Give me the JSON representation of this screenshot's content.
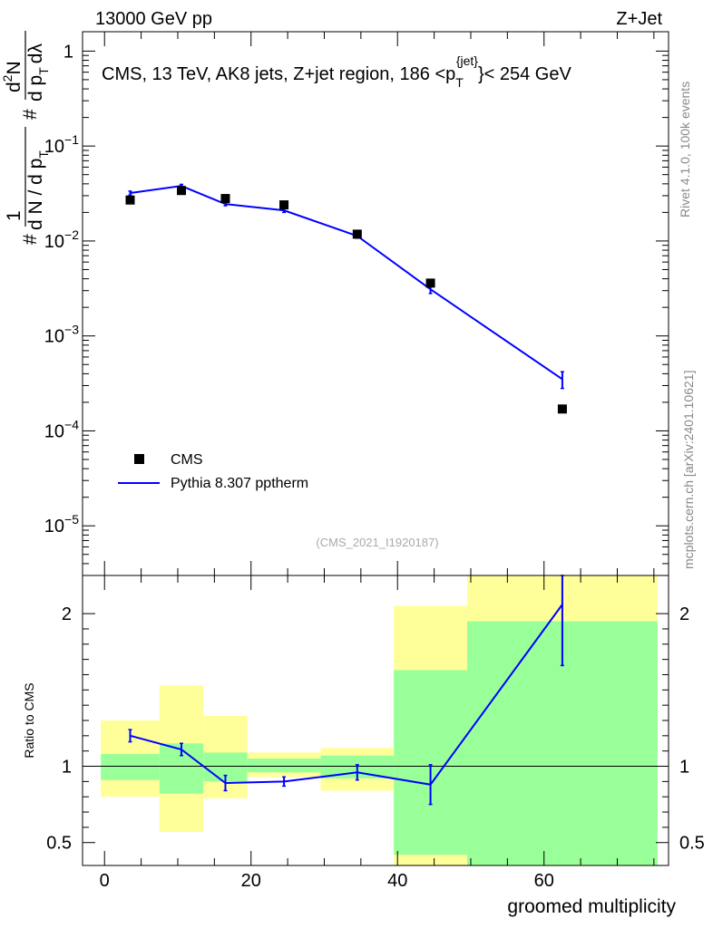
{
  "chart_data": [
    {
      "type": "scatter",
      "panel": "main",
      "title": "CMS, 13 TeV, AK8 jets, Z+jet region, 186 <p_T^{jet}< 254 GeV",
      "title_parts": {
        "prefix": "CMS, 13 TeV, AK8 jets, Z+jet region, 186 <p",
        "sub": "T",
        "sup": "{jet}",
        "suffix": "}< 254 GeV"
      },
      "top_left": "13000 GeV pp",
      "top_right": "Z+Jet",
      "ylabel": "(1/#dN/dp_T) #d²N/dp_T dλ",
      "ylabel_parts": {
        "one": "1",
        "hash": "#",
        "denom": "d N / d p",
        "sub": "T",
        "num": "d",
        "sq": "2",
        "n": "N",
        "den2": "d p",
        "sub2": "T",
        "dl": "dλ"
      },
      "yscale": "log",
      "ylim": [
        3e-06,
        1.6
      ],
      "xlim": [
        -3,
        77
      ],
      "y_ticks": [
        {
          "value": 1,
          "label": "1"
        },
        {
          "value": 0.1,
          "label": "10",
          "exp": "−1"
        },
        {
          "value": 0.01,
          "label": "10",
          "exp": "−2"
        },
        {
          "value": 0.001,
          "label": "10",
          "exp": "−3"
        },
        {
          "value": 0.0001,
          "label": "10",
          "exp": "−4"
        },
        {
          "value": 1e-05,
          "label": "10",
          "exp": "−5"
        }
      ],
      "series": [
        {
          "name": "CMS",
          "style": "marker",
          "color": "#000000",
          "x": [
            3.5,
            10.5,
            16.5,
            24.5,
            34.5,
            44.5,
            62.5
          ],
          "y": [
            0.027,
            0.034,
            0.028,
            0.024,
            0.0118,
            0.0036,
            0.00017
          ]
        },
        {
          "name": "Pythia 8.307 pptherm",
          "style": "line",
          "color": "#0000ff",
          "x": [
            3.5,
            10.5,
            16.5,
            24.5,
            34.5,
            44.5,
            62.5
          ],
          "y": [
            0.032,
            0.038,
            0.0245,
            0.021,
            0.0113,
            0.0031,
            0.00035
          ],
          "yerr": [
            0.0015,
            0.0015,
            0.001,
            0.001,
            0.0006,
            0.0003,
            7e-05
          ]
        }
      ],
      "legend": [
        "CMS",
        "Pythia 8.307 pptherm"
      ],
      "legend_position": "lower-left",
      "watermark": "(CMS_2021_I1920187)",
      "side_text_1": "Rivet 4.1.0,  100k events",
      "side_text_2": "mcplots.cern.ch [arXiv:2401.10621]"
    },
    {
      "type": "line",
      "panel": "ratio",
      "ylabel": "Ratio to CMS",
      "xlabel": "groomed multiplicity",
      "ylim": [
        0.35,
        2.25
      ],
      "xlim": [
        -3,
        77
      ],
      "x_ticks": [
        0,
        20,
        40,
        60
      ],
      "y_ticks": [
        {
          "value": 0.5,
          "label": "0.5"
        },
        {
          "value": 1,
          "label": "1"
        },
        {
          "value": 2,
          "label": "2"
        }
      ],
      "bands": [
        {
          "x0": -0.5,
          "x1": 7.5,
          "y_lo": 0.8,
          "y_hi": 1.3,
          "g_lo": 0.91,
          "g_hi": 1.08
        },
        {
          "x0": 7.5,
          "x1": 13.5,
          "y_lo": 0.57,
          "y_hi": 1.53,
          "g_lo": 0.82,
          "g_hi": 1.15
        },
        {
          "x0": 13.5,
          "x1": 19.5,
          "y_lo": 0.79,
          "y_hi": 1.33,
          "g_lo": 0.9,
          "g_hi": 1.09
        },
        {
          "x0": 19.5,
          "x1": 29.5,
          "y_lo": 0.93,
          "y_hi": 1.09,
          "g_lo": 0.96,
          "g_hi": 1.05
        },
        {
          "x0": 29.5,
          "x1": 39.5,
          "y_lo": 0.84,
          "y_hi": 1.12,
          "g_lo": 0.92,
          "g_hi": 1.07
        },
        {
          "x0": 39.5,
          "x1": 49.5,
          "y_lo": 0.35,
          "y_hi": 2.05,
          "g_lo": 0.42,
          "g_hi": 1.63
        },
        {
          "x0": 49.5,
          "x1": 75.5,
          "y_lo": 0.35,
          "y_hi": 2.25,
          "g_lo": 0.35,
          "g_hi": 1.95
        }
      ],
      "series": [
        {
          "name": "Pythia 8.307 pptherm",
          "color": "#0000ff",
          "x": [
            3.5,
            10.5,
            16.5,
            24.5,
            34.5,
            44.5,
            62.5
          ],
          "y": [
            1.2,
            1.11,
            0.89,
            0.9,
            0.96,
            0.88,
            2.06
          ],
          "yerr": [
            0.04,
            0.04,
            0.05,
            0.03,
            0.05,
            0.13,
            0.4
          ]
        }
      ],
      "reference_line": 1
    }
  ]
}
